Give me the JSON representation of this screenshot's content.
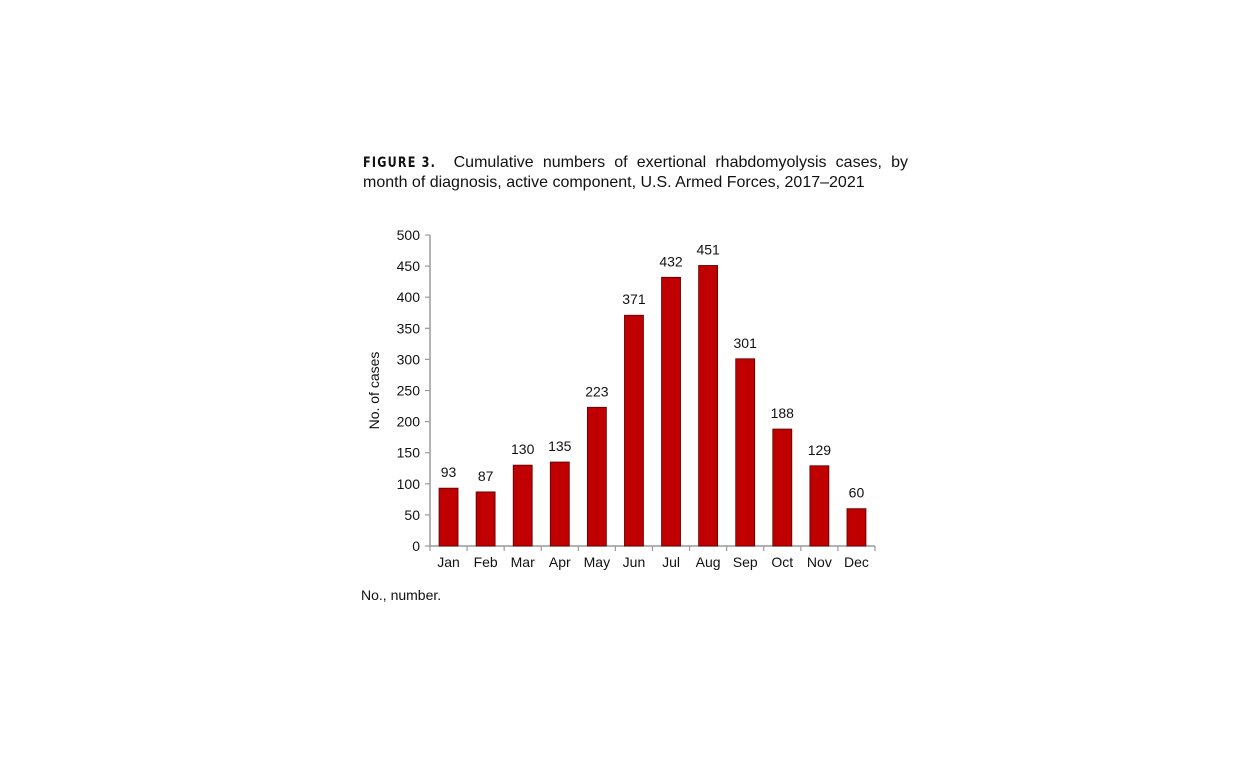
{
  "figure": {
    "label": "FIGURE 3.",
    "caption": "Cumulative numbers of exertional rhabdomyolysis cases, by month of diagnosis, active component, U.S. Armed Forces, 2017–2021",
    "note": "No., number."
  },
  "chart_data": {
    "type": "bar",
    "categories": [
      "Jan",
      "Feb",
      "Mar",
      "Apr",
      "May",
      "Jun",
      "Jul",
      "Aug",
      "Sep",
      "Oct",
      "Nov",
      "Dec"
    ],
    "values": [
      93,
      87,
      130,
      135,
      223,
      371,
      432,
      451,
      301,
      188,
      129,
      60
    ],
    "xlabel": "",
    "ylabel": "No. of cases",
    "ylim": [
      0,
      500
    ],
    "yticks": [
      0,
      50,
      100,
      150,
      200,
      250,
      300,
      350,
      400,
      450,
      500
    ],
    "grid": false,
    "data_labels": true,
    "bar_color": "#C00000"
  }
}
